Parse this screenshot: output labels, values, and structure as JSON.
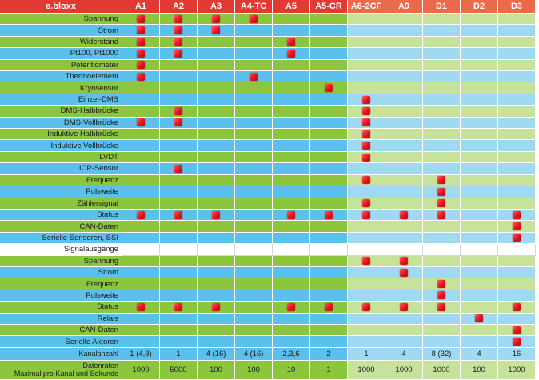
{
  "header": {
    "title": "e.bloxx",
    "columns": [
      "A1",
      "A2",
      "A3",
      "A4-TC",
      "A5",
      "A5-CR",
      "A6-2CF",
      "A9",
      "D1",
      "D2",
      "D3"
    ]
  },
  "rows": [
    {
      "label": "Spannung",
      "style": "g",
      "marks": [
        "A1",
        "A2",
        "A3",
        "A4-TC"
      ]
    },
    {
      "label": "Strom",
      "style": "b",
      "marks": [
        "A1",
        "A2",
        "A3"
      ]
    },
    {
      "label": "Widerstand",
      "style": "g",
      "marks": [
        "A1",
        "A2",
        "A5"
      ]
    },
    {
      "label": "Pt100, Pt1000",
      "style": "b",
      "marks": [
        "A1",
        "A2",
        "A5"
      ]
    },
    {
      "label": "Potentiometer",
      "style": "g",
      "marks": [
        "A1"
      ]
    },
    {
      "label": "Thermoelement",
      "style": "b",
      "marks": [
        "A1",
        "A4-TC"
      ]
    },
    {
      "label": "Kryosensor",
      "style": "g",
      "marks": [
        "A5-CR"
      ]
    },
    {
      "label": "Einzel-DMS",
      "style": "b",
      "marks": [
        "A6-2CF"
      ]
    },
    {
      "label": "DMS-Halbbrücke",
      "style": "g",
      "marks": [
        "A2",
        "A6-2CF"
      ]
    },
    {
      "label": "DMS-Vollbrücke",
      "style": "b",
      "marks": [
        "A1",
        "A2",
        "A6-2CF"
      ]
    },
    {
      "label": "Induktive Halbbrücke",
      "style": "g",
      "marks": [
        "A6-2CF"
      ]
    },
    {
      "label": "Induktive Vollbrücke",
      "style": "b",
      "marks": [
        "A6-2CF"
      ]
    },
    {
      "label": "LVDT",
      "style": "g",
      "marks": [
        "A6-2CF"
      ]
    },
    {
      "label": "ICP-Sensor",
      "style": "b",
      "marks": [
        "A2"
      ]
    },
    {
      "label": "Frequenz",
      "style": "g",
      "marks": [
        "A6-2CF",
        "D1"
      ]
    },
    {
      "label": "Pulsweite",
      "style": "b",
      "marks": [
        "D1"
      ]
    },
    {
      "label": "Zählersignal",
      "style": "g",
      "marks": [
        "A6-2CF",
        "D1"
      ]
    },
    {
      "label": "Status",
      "style": "b",
      "marks": [
        "A1",
        "A2",
        "A3",
        "A5",
        "A5-CR",
        "A6-2CF",
        "A9",
        "D1",
        "D3"
      ]
    },
    {
      "label": "CAN-Daten",
      "style": "g",
      "marks": [
        "D3"
      ]
    },
    {
      "label": "Serielle Sensoren, SSI",
      "style": "b",
      "marks": [
        "D3"
      ]
    },
    {
      "label": "Signalausgänge",
      "style": "w",
      "marks": []
    },
    {
      "label": "Spannung",
      "style": "g",
      "marks": [
        "A6-2CF",
        "A9"
      ]
    },
    {
      "label": "Strom",
      "style": "b",
      "marks": [
        "A9"
      ]
    },
    {
      "label": "Frequenz",
      "style": "g",
      "marks": [
        "D1"
      ]
    },
    {
      "label": "Pulsweite",
      "style": "b",
      "marks": [
        "D1"
      ]
    },
    {
      "label": "Status",
      "style": "g",
      "marks": [
        "A1",
        "A2",
        "A3",
        "A5",
        "A5-CR",
        "A6-2CF",
        "A9",
        "D1",
        "D3"
      ]
    },
    {
      "label": "Relais",
      "style": "b",
      "marks": [
        "D2"
      ]
    },
    {
      "label": "CAN-Daten",
      "style": "g",
      "marks": [
        "D3"
      ]
    },
    {
      "label": "Serielle Aktoren",
      "style": "b",
      "marks": [
        "D3"
      ]
    }
  ],
  "footer": {
    "kanalanzahl": {
      "label": "Kanalanzahl",
      "values": [
        "1 (4,8)",
        "1",
        "4 (16)",
        "4 (16)",
        "2,3,6",
        "2",
        "1",
        "4",
        "8 (32)",
        "4",
        "16"
      ]
    },
    "datenraten": {
      "label_line1": "Datenraten",
      "label_line2": "Maximal pro Kanal und Sekunde",
      "values": [
        "1000",
        "5000",
        "100",
        "100",
        "10",
        "1",
        "1000",
        "1000",
        "1000",
        "100",
        "1000"
      ]
    }
  },
  "colors": {
    "header": "#e23a33",
    "green": "#8cc63f",
    "blue": "#5bc0eb",
    "mark": "#e3141e"
  },
  "icons": {
    "mark": "red-square-mark-icon"
  }
}
